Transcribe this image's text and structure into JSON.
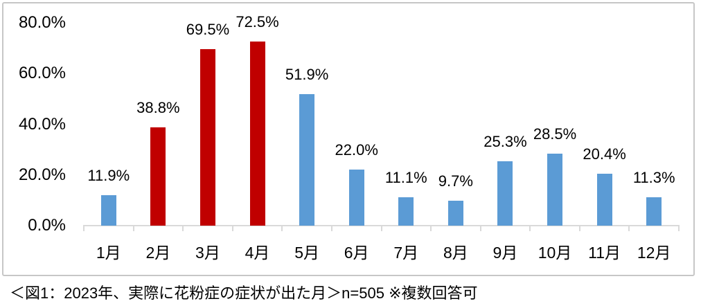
{
  "chart_data": {
    "type": "bar",
    "title": "",
    "categories": [
      "1月",
      "2月",
      "3月",
      "4月",
      "5月",
      "6月",
      "7月",
      "8月",
      "9月",
      "10月",
      "11月",
      "12月"
    ],
    "values": [
      11.9,
      38.8,
      69.5,
      72.5,
      51.9,
      22.0,
      11.1,
      9.7,
      25.3,
      28.5,
      20.4,
      11.3
    ],
    "value_labels": [
      "11.9%",
      "38.8%",
      "69.5%",
      "72.5%",
      "51.9%",
      "22.0%",
      "11.1%",
      "9.7%",
      "25.3%",
      "28.5%",
      "20.4%",
      "11.3%"
    ],
    "bar_colors": [
      "#5b9bd5",
      "#c00000",
      "#c00000",
      "#c00000",
      "#5b9bd5",
      "#5b9bd5",
      "#5b9bd5",
      "#5b9bd5",
      "#5b9bd5",
      "#5b9bd5",
      "#5b9bd5",
      "#5b9bd5"
    ],
    "y_tick_labels": [
      "0.0%",
      "20.0%",
      "40.0%",
      "60.0%",
      "80.0%"
    ],
    "ylim": [
      0,
      80
    ],
    "y_tick_step": 20,
    "grid": false,
    "legend": "none",
    "xlabel": "",
    "ylabel": ""
  },
  "caption": "＜図1：2023年、実際に花粉症の症状が出た月＞n=505 ※複数回答可",
  "colors": {
    "bar_blue": "#5b9bd5",
    "bar_red": "#c00000",
    "axis_line": "#d9d9d9",
    "frame_border": "#c6c6c6",
    "text": "#000000"
  }
}
